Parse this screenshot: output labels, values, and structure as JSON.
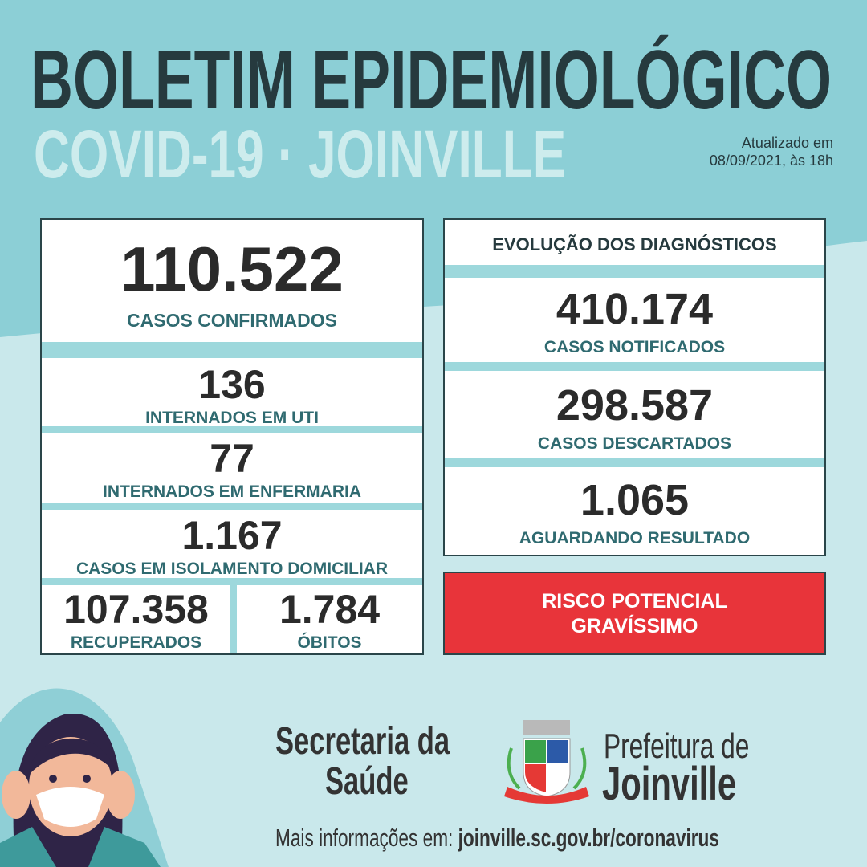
{
  "header": {
    "title": "BOLETIM EPIDEMIOLÓGICO",
    "subtitle": "COVID-19 · JOINVILLE",
    "updated_line1": "Atualizado em",
    "updated_line2": "08/09/2021, às 18h"
  },
  "left": {
    "confirmed": {
      "value": "110.522",
      "label": "CASOS CONFIRMADOS"
    },
    "icu": {
      "value": "136",
      "label": "INTERNADOS EM UTI"
    },
    "ward": {
      "value": "77",
      "label": "INTERNADOS EM ENFERMARIA"
    },
    "home": {
      "value": "1.167",
      "label": "CASOS EM ISOLAMENTO DOMICILIAR"
    },
    "recovered": {
      "value": "107.358",
      "label": "RECUPERADOS"
    },
    "deaths": {
      "value": "1.784",
      "label": "ÓBITOS"
    }
  },
  "right": {
    "title": "EVOLUÇÃO DOS DIAGNÓSTICOS",
    "notified": {
      "value": "410.174",
      "label": "CASOS NOTIFICADOS"
    },
    "discarded": {
      "value": "298.587",
      "label": "CASOS DESCARTADOS"
    },
    "pending": {
      "value": "1.065",
      "label": "AGUARDANDO RESULTADO"
    }
  },
  "risk": {
    "line1": "RISCO POTENCIAL",
    "line2": "GRAVÍSSIMO",
    "color": "#e8343a"
  },
  "footer": {
    "secretaria_line1": "Secretaria da",
    "secretaria_line2": "Saúde",
    "prefeitura_line1": "Prefeitura de",
    "prefeitura_line2": "Joinville",
    "more_info": "Mais informações em:",
    "url": "joinville.sc.gov.br/coronavirus"
  },
  "colors": {
    "top_bg": "#8ccfd6",
    "bottom_bg": "#c9e8eb",
    "title": "#263a3e",
    "label": "#2f6a70"
  }
}
